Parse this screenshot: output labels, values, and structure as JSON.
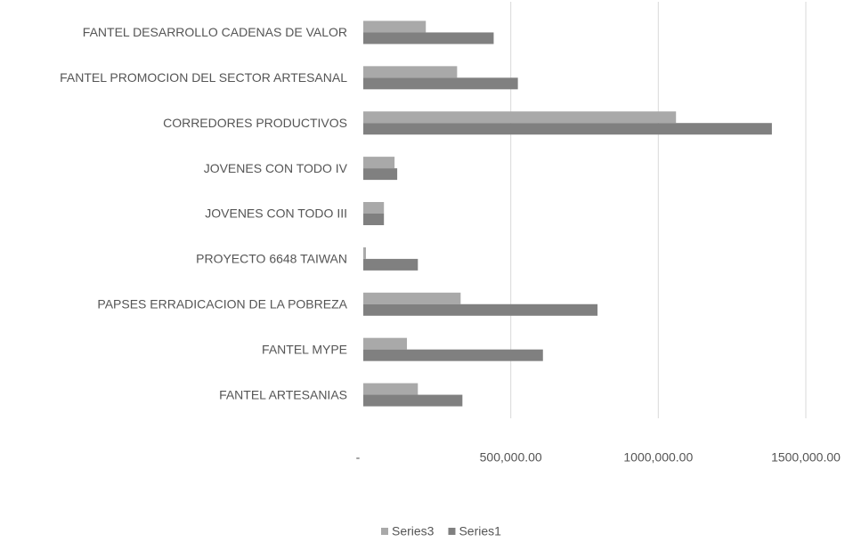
{
  "chart_data": {
    "type": "bar",
    "orientation": "horizontal",
    "categories": [
      "FANTEL DESARROLLO CADENAS DE VALOR",
      "FANTEL PROMOCION DEL SECTOR ARTESANAL",
      "CORREDORES PRODUCTIVOS",
      "JOVENES CON TODO IV",
      "JOVENES CON TODO III",
      "PROYECTO 6648 TAIWAN",
      "PAPSES ERRADICACION DE LA POBREZA",
      "FANTEL MYPE",
      "FANTEL ARTESANIAS"
    ],
    "series": [
      {
        "name": "Series3",
        "color": "#a9a9a9",
        "values": [
          212000,
          318000,
          1060000,
          106000,
          70000,
          9000,
          330000,
          148000,
          185000
        ]
      },
      {
        "name": "Series1",
        "color": "#808080",
        "values": [
          442000,
          524000,
          1385000,
          115000,
          70000,
          185000,
          794000,
          609000,
          336000
        ]
      }
    ],
    "xlim": [
      0,
      1500000
    ],
    "xticks": [
      {
        "value": 0,
        "label": "-"
      },
      {
        "value": 500000,
        "label": "500,000.00"
      },
      {
        "value": 1000000,
        "label": "1000,000.00"
      },
      {
        "value": 1500000,
        "label": "1500,000.00"
      }
    ],
    "grid": true,
    "legend": "bottom"
  }
}
